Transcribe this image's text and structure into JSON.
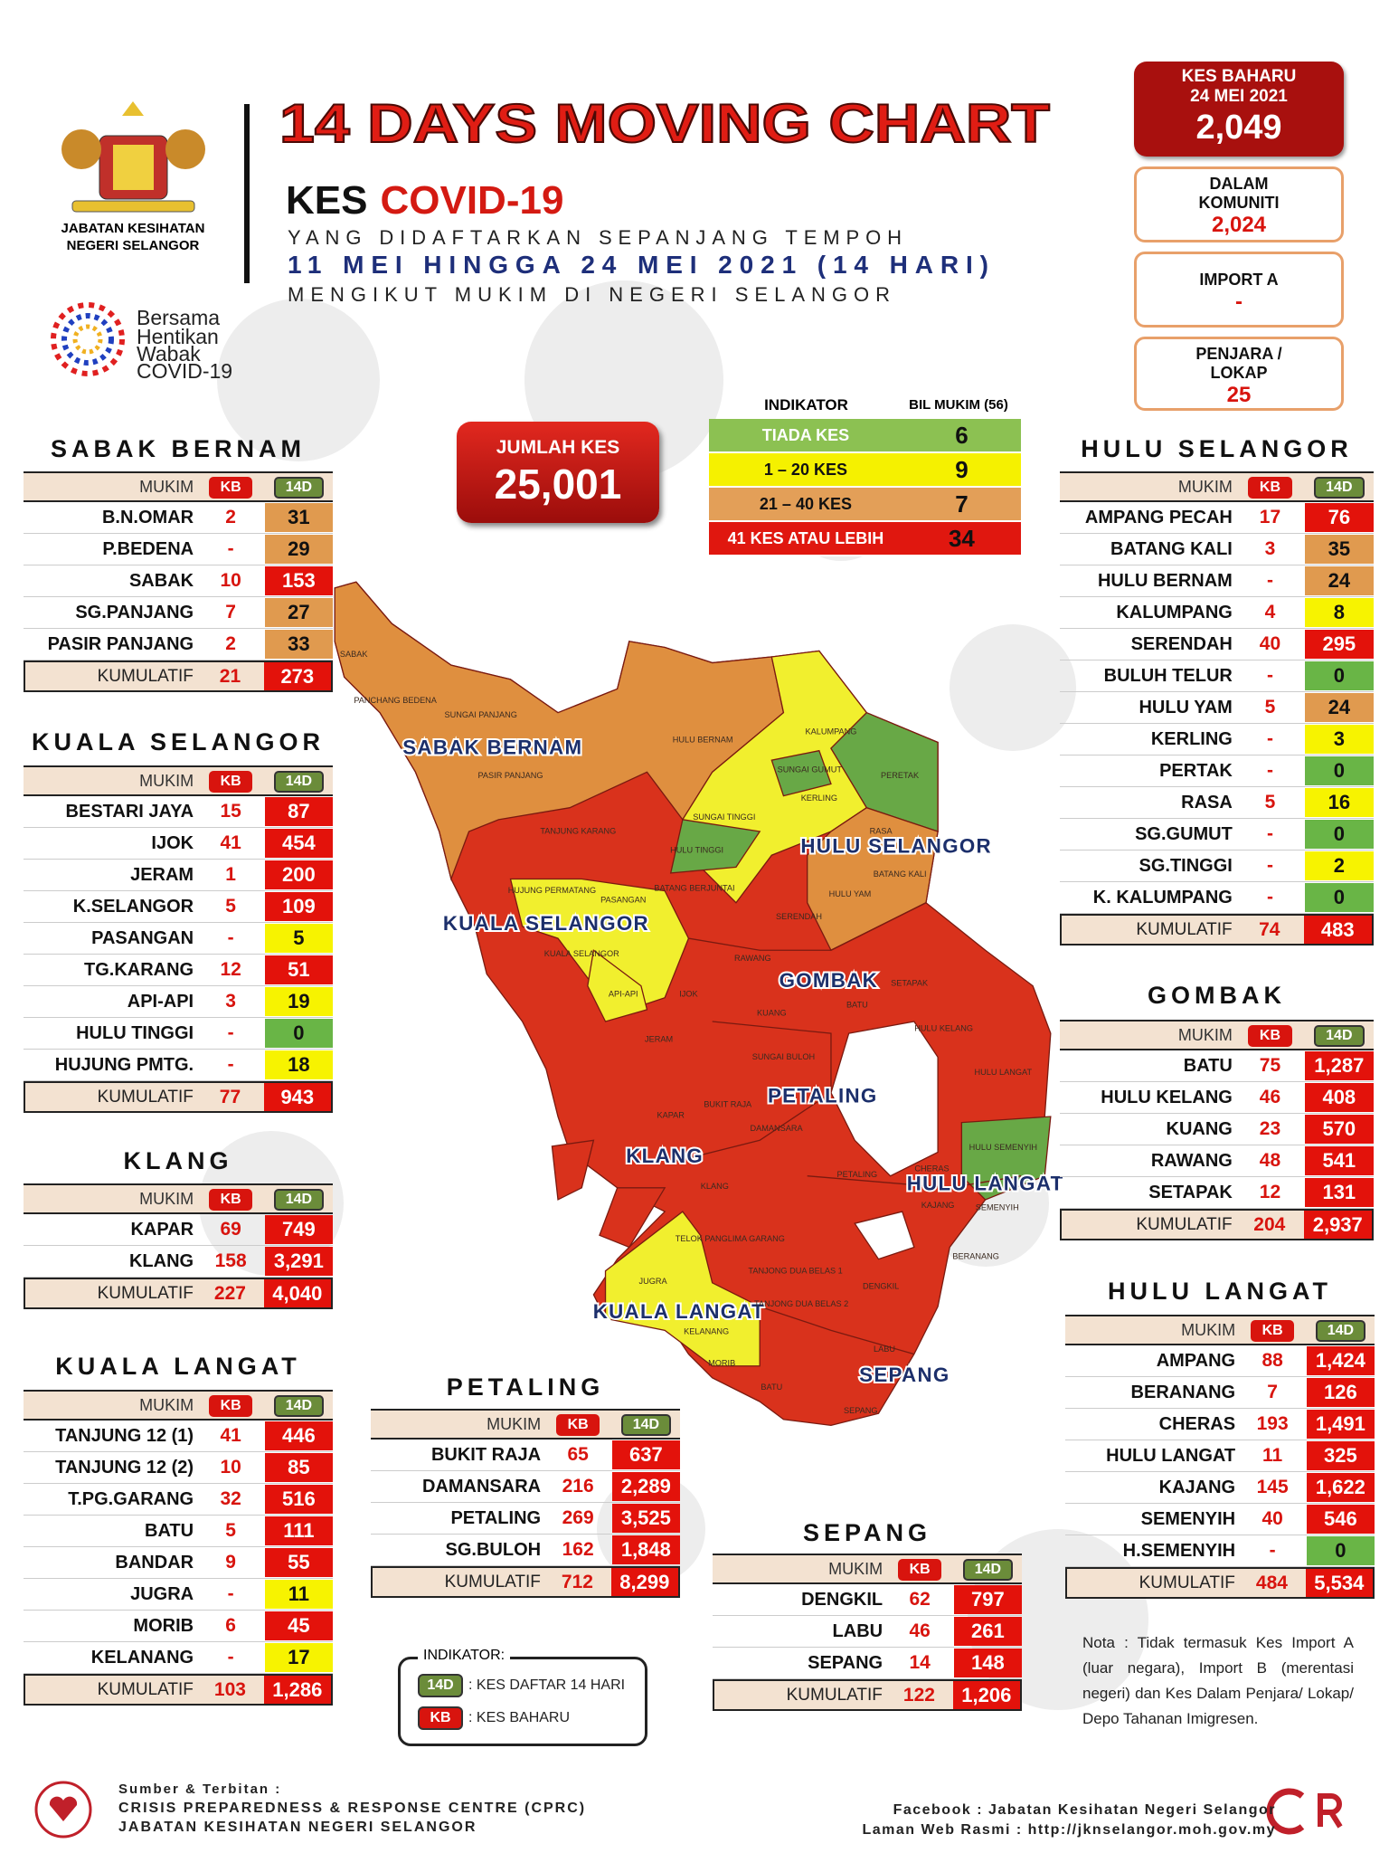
{
  "header": {
    "agency": [
      "JABATAN KESIHATAN",
      "NEGERI SELANGOR"
    ],
    "campaign": [
      "Bersama",
      "Hentikan",
      "Wabak",
      "COVID-19"
    ],
    "title": "14 DAYS MOVING CHART",
    "subtitle": [
      "KES",
      "COVID-19"
    ],
    "lines": [
      "YANG DIDAFTARKAN SEPANJANG TEMPOH",
      "11 MEI HINGGA 24 MEI 2021 (14 HARI)",
      "MENGIKUT MUKIM DI NEGERI SELANGOR"
    ]
  },
  "new_cases": {
    "label": [
      "KES BAHARU",
      "24 MEI 2021"
    ],
    "value": "2,049"
  },
  "breakdown": [
    {
      "label": [
        "DALAM",
        "KOMUNITI"
      ],
      "value": "2,024"
    },
    {
      "label": [
        "IMPORT A"
      ],
      "value": "-"
    },
    {
      "label": [
        "PENJARA /",
        "LOKAP"
      ],
      "value": "25"
    }
  ],
  "total": {
    "label": "JUMLAH KES",
    "value": "25,001"
  },
  "indicator": {
    "headers": [
      "INDIKATOR",
      "BIL MUKIM (56)"
    ],
    "rows": [
      {
        "label": "TIADA KES",
        "count": "6",
        "color": "#8cc152",
        "text": "#fff"
      },
      {
        "label": "1 – 20 KES",
        "count": "9",
        "color": "#f5f100",
        "text": "#111"
      },
      {
        "label": "21 – 40 KES",
        "count": "7",
        "color": "#e39f58",
        "text": "#111"
      },
      {
        "label": "41 KES ATAU LEBIH",
        "count": "34",
        "color": "#e0170f",
        "text": "#fff"
      }
    ]
  },
  "districts": [
    {
      "title": "SABAK BERNAM",
      "header": [
        "MUKIM",
        "KB",
        "14D"
      ],
      "rows": [
        {
          "mukim": "B.N.OMAR",
          "kb": "2",
          "d14": "31",
          "color": "#e09a4f"
        },
        {
          "mukim": "P.BEDENA",
          "kb": "-",
          "d14": "29",
          "color": "#e09a4f"
        },
        {
          "mukim": "SABAK",
          "kb": "10",
          "d14": "153",
          "color": "#e3120b"
        },
        {
          "mukim": "SG.PANJANG",
          "kb": "7",
          "d14": "27",
          "color": "#e09a4f"
        },
        {
          "mukim": "PASIR PANJANG",
          "kb": "2",
          "d14": "33",
          "color": "#e09a4f"
        }
      ],
      "total": {
        "label": "KUMULATIF",
        "kb": "21",
        "d14": "273",
        "color": "#e3120b"
      }
    },
    {
      "title": "KUALA SELANGOR",
      "header": [
        "MUKIM",
        "KB",
        "14D"
      ],
      "rows": [
        {
          "mukim": "BESTARI JAYA",
          "kb": "15",
          "d14": "87",
          "color": "#e3120b"
        },
        {
          "mukim": "IJOK",
          "kb": "41",
          "d14": "454",
          "color": "#e3120b"
        },
        {
          "mukim": "JERAM",
          "kb": "1",
          "d14": "200",
          "color": "#e3120b"
        },
        {
          "mukim": "K.SELANGOR",
          "kb": "5",
          "d14": "109",
          "color": "#e3120b"
        },
        {
          "mukim": "PASANGAN",
          "kb": "-",
          "d14": "5",
          "color": "#f7f300"
        },
        {
          "mukim": "TG.KARANG",
          "kb": "12",
          "d14": "51",
          "color": "#e3120b"
        },
        {
          "mukim": "API-API",
          "kb": "3",
          "d14": "19",
          "color": "#f7f300"
        },
        {
          "mukim": "HULU TINGGI",
          "kb": "-",
          "d14": "0",
          "color": "#69b546"
        },
        {
          "mukim": "HUJUNG PMTG.",
          "kb": "-",
          "d14": "18",
          "color": "#f7f300"
        }
      ],
      "total": {
        "label": "KUMULATIF",
        "kb": "77",
        "d14": "943",
        "color": "#e3120b"
      }
    },
    {
      "title": "KLANG",
      "header": [
        "MUKIM",
        "KB",
        "14D"
      ],
      "rows": [
        {
          "mukim": "KAPAR",
          "kb": "69",
          "d14": "749",
          "color": "#e3120b"
        },
        {
          "mukim": "KLANG",
          "kb": "158",
          "d14": "3,291",
          "color": "#e3120b"
        }
      ],
      "total": {
        "label": "KUMULATIF",
        "kb": "227",
        "d14": "4,040",
        "color": "#e3120b"
      }
    },
    {
      "title": "KUALA LANGAT",
      "header": [
        "MUKIM",
        "KB",
        "14D"
      ],
      "rows": [
        {
          "mukim": "TANJUNG 12 (1)",
          "kb": "41",
          "d14": "446",
          "color": "#e3120b"
        },
        {
          "mukim": "TANJUNG 12 (2)",
          "kb": "10",
          "d14": "85",
          "color": "#e3120b"
        },
        {
          "mukim": "T.PG.GARANG",
          "kb": "32",
          "d14": "516",
          "color": "#e3120b"
        },
        {
          "mukim": "BATU",
          "kb": "5",
          "d14": "111",
          "color": "#e3120b"
        },
        {
          "mukim": "BANDAR",
          "kb": "9",
          "d14": "55",
          "color": "#e3120b"
        },
        {
          "mukim": "JUGRA",
          "kb": "-",
          "d14": "11",
          "color": "#f7f300"
        },
        {
          "mukim": "MORIB",
          "kb": "6",
          "d14": "45",
          "color": "#e3120b"
        },
        {
          "mukim": "KELANANG",
          "kb": "-",
          "d14": "17",
          "color": "#f7f300"
        }
      ],
      "total": {
        "label": "KUMULATIF",
        "kb": "103",
        "d14": "1,286",
        "color": "#e3120b"
      }
    },
    {
      "title": "PETALING",
      "header": [
        "MUKIM",
        "KB",
        "14D"
      ],
      "rows": [
        {
          "mukim": "BUKIT RAJA",
          "kb": "65",
          "d14": "637",
          "color": "#e3120b"
        },
        {
          "mukim": "DAMANSARA",
          "kb": "216",
          "d14": "2,289",
          "color": "#e3120b"
        },
        {
          "mukim": "PETALING",
          "kb": "269",
          "d14": "3,525",
          "color": "#e3120b"
        },
        {
          "mukim": "SG.BULOH",
          "kb": "162",
          "d14": "1,848",
          "color": "#e3120b"
        }
      ],
      "total": {
        "label": "KUMULATIF",
        "kb": "712",
        "d14": "8,299",
        "color": "#e3120b"
      }
    },
    {
      "title": "SEPANG",
      "header": [
        "MUKIM",
        "KB",
        "14D"
      ],
      "rows": [
        {
          "mukim": "DENGKIL",
          "kb": "62",
          "d14": "797",
          "color": "#e3120b"
        },
        {
          "mukim": "LABU",
          "kb": "46",
          "d14": "261",
          "color": "#e3120b"
        },
        {
          "mukim": "SEPANG",
          "kb": "14",
          "d14": "148",
          "color": "#e3120b"
        }
      ],
      "total": {
        "label": "KUMULATIF",
        "kb": "122",
        "d14": "1,206",
        "color": "#e3120b"
      }
    },
    {
      "title": "HULU SELANGOR",
      "header": [
        "MUKIM",
        "KB",
        "14D"
      ],
      "rows": [
        {
          "mukim": "AMPANG PECAH",
          "kb": "17",
          "d14": "76",
          "color": "#e3120b"
        },
        {
          "mukim": "BATANG KALI",
          "kb": "3",
          "d14": "35",
          "color": "#e09a4f"
        },
        {
          "mukim": "HULU BERNAM",
          "kb": "-",
          "d14": "24",
          "color": "#e09a4f"
        },
        {
          "mukim": "KALUMPANG",
          "kb": "4",
          "d14": "8",
          "color": "#f7f300"
        },
        {
          "mukim": "SERENDAH",
          "kb": "40",
          "d14": "295",
          "color": "#e3120b"
        },
        {
          "mukim": "BULUH TELUR",
          "kb": "-",
          "d14": "0",
          "color": "#69b546"
        },
        {
          "mukim": "HULU YAM",
          "kb": "5",
          "d14": "24",
          "color": "#e09a4f"
        },
        {
          "mukim": "KERLING",
          "kb": "-",
          "d14": "3",
          "color": "#f7f300"
        },
        {
          "mukim": "PERTAK",
          "kb": "-",
          "d14": "0",
          "color": "#69b546"
        },
        {
          "mukim": "RASA",
          "kb": "5",
          "d14": "16",
          "color": "#f7f300"
        },
        {
          "mukim": "SG.GUMUT",
          "kb": "-",
          "d14": "0",
          "color": "#69b546"
        },
        {
          "mukim": "SG.TINGGI",
          "kb": "-",
          "d14": "2",
          "color": "#f7f300"
        },
        {
          "mukim": "K. KALUMPANG",
          "kb": "-",
          "d14": "0",
          "color": "#69b546"
        }
      ],
      "total": {
        "label": "KUMULATIF",
        "kb": "74",
        "d14": "483",
        "color": "#e3120b"
      }
    },
    {
      "title": "GOMBAK",
      "header": [
        "MUKIM",
        "KB",
        "14D"
      ],
      "rows": [
        {
          "mukim": "BATU",
          "kb": "75",
          "d14": "1,287",
          "color": "#e3120b"
        },
        {
          "mukim": "HULU KELANG",
          "kb": "46",
          "d14": "408",
          "color": "#e3120b"
        },
        {
          "mukim": "KUANG",
          "kb": "23",
          "d14": "570",
          "color": "#e3120b"
        },
        {
          "mukim": "RAWANG",
          "kb": "48",
          "d14": "541",
          "color": "#e3120b"
        },
        {
          "mukim": "SETAPAK",
          "kb": "12",
          "d14": "131",
          "color": "#e3120b"
        }
      ],
      "total": {
        "label": "KUMULATIF",
        "kb": "204",
        "d14": "2,937",
        "color": "#e3120b"
      }
    },
    {
      "title": "HULU LANGAT",
      "header": [
        "MUKIM",
        "KB",
        "14D"
      ],
      "rows": [
        {
          "mukim": "AMPANG",
          "kb": "88",
          "d14": "1,424",
          "color": "#e3120b"
        },
        {
          "mukim": "BERANANG",
          "kb": "7",
          "d14": "126",
          "color": "#e3120b"
        },
        {
          "mukim": "CHERAS",
          "kb": "193",
          "d14": "1,491",
          "color": "#e3120b"
        },
        {
          "mukim": "HULU LANGAT",
          "kb": "11",
          "d14": "325",
          "color": "#e3120b"
        },
        {
          "mukim": "KAJANG",
          "kb": "145",
          "d14": "1,622",
          "color": "#e3120b"
        },
        {
          "mukim": "SEMENYIH",
          "kb": "40",
          "d14": "546",
          "color": "#e3120b"
        },
        {
          "mukim": "H.SEMENYIH",
          "kb": "-",
          "d14": "0",
          "color": "#69b546"
        }
      ],
      "total": {
        "label": "KUMULATIF",
        "kb": "484",
        "d14": "5,534",
        "color": "#e3120b"
      }
    }
  ],
  "map": {
    "districts": [
      "SABAK BERNAM",
      "HULU SELANGOR",
      "KUALA SELANGOR",
      "GOMBAK",
      "PETALING",
      "KLANG",
      "HULU LANGAT",
      "KUALA LANGAT",
      "SEPANG"
    ],
    "mukim": [
      "SABAK",
      "PANCHANG BEDENA",
      "SUNGAI PANJANG",
      "PASIR PANJANG",
      "HULU BERNAM",
      "KALUMPANG",
      "SUNGAI GUMUT",
      "KERLING",
      "PERETAK",
      "SUNGAI TINGGI",
      "RASA",
      "HULU TINGGI",
      "TANJUNG KARANG",
      "BATANG KALI",
      "HULU YAM",
      "HUJUNG PERMATANG",
      "PASANGAN",
      "BATANG BERJUNTAI",
      "SERENDAH",
      "KUALA SELANGOR",
      "API-API",
      "IJOK",
      "RAWANG",
      "SETAPAK",
      "BATU",
      "KUANG",
      "HULU KELANG",
      "JERAM",
      "SUNGAI BULOH",
      "HULU LANGAT",
      "KAPAR",
      "BUKIT RAJA",
      "DAMANSARA",
      "HULU SEMENYIH",
      "CHERAS",
      "PETALING",
      "KAJANG",
      "SEMENYIH",
      "KLANG",
      "TELOK PANGLIMA GARANG",
      "TANJONG DUA BELAS 1",
      "JUGRA",
      "BERANANG",
      "DENGKIL",
      "TANJONG DUA BELAS 2",
      "KELANANG",
      "LABU",
      "MORIB",
      "BATU",
      "SEPANG"
    ]
  },
  "legend": {
    "title": "INDIKATOR:",
    "items": [
      {
        "key": "14D",
        "text": ": KES DAFTAR 14 HARI"
      },
      {
        "key": "KB",
        "text": ": KES BAHARU"
      }
    ]
  },
  "note": "Nota : Tidak termasuk Kes Import A (luar negara), Import B (merentasi negeri) dan Kes Dalam Penjara/ Lokap/ Depo Tahanan Imigresen.",
  "footer": {
    "source": [
      "Sumber & Terbitan :",
      "CRISIS PREPAREDNESS & RESPONSE CENTRE (CPRC)",
      "JABATAN KESIHATAN NEGERI SELANGOR"
    ],
    "links": [
      "Facebook : Jabatan Kesihatan Negeri Selangor",
      "Laman Web Rasmi : http://jknselangor.moh.gov.my"
    ]
  }
}
